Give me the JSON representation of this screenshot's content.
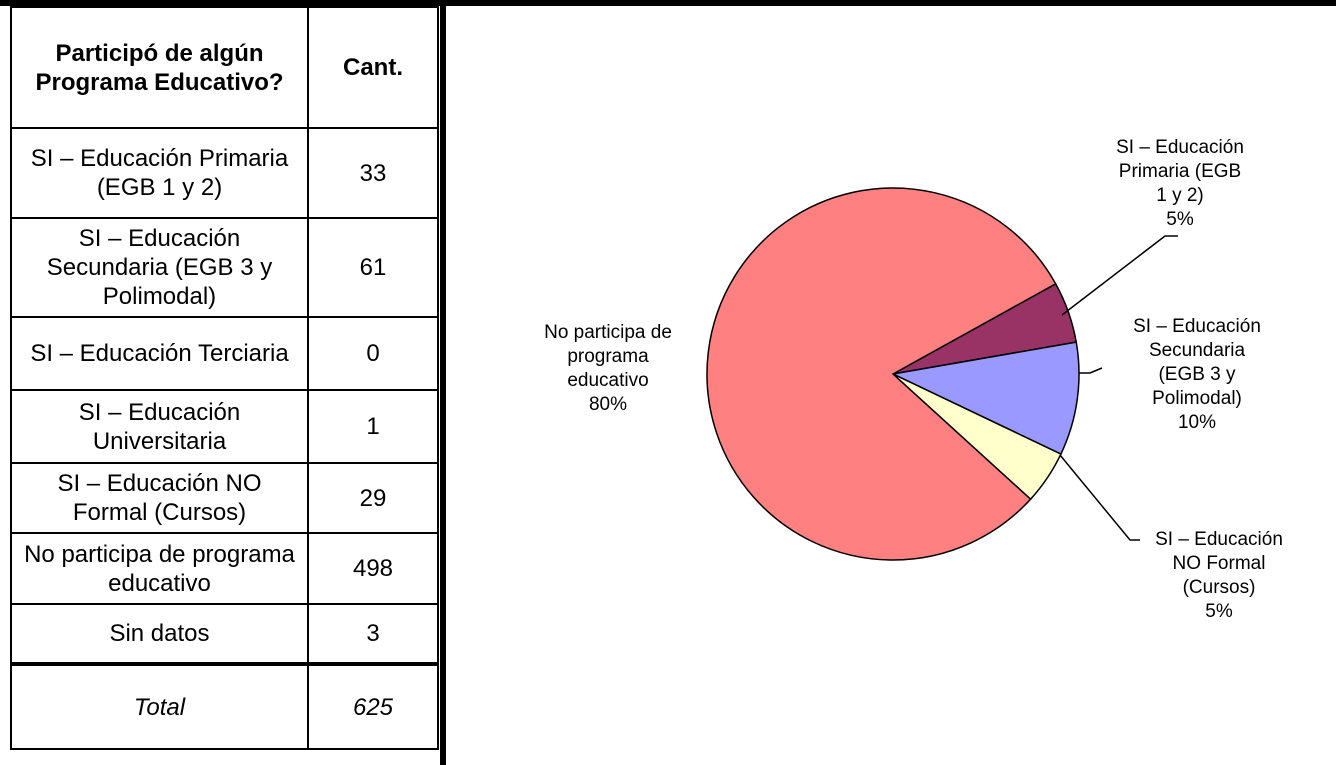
{
  "table": {
    "header": {
      "category": "Participó de algún Programa Educativo?",
      "count": "Cant."
    },
    "rows": [
      {
        "label": "SI – Educación Primaria (EGB 1 y 2)",
        "value": "33"
      },
      {
        "label": "SI – Educación Secundaria (EGB 3 y Polimodal)",
        "value": "61"
      },
      {
        "label": "SI – Educación Terciaria",
        "value": "0"
      },
      {
        "label": "SI – Educación Universitaria",
        "value": "1"
      },
      {
        "label": "SI – Educación NO Formal (Cursos)",
        "value": "29"
      },
      {
        "label": "No participa de programa educativo",
        "value": "498"
      },
      {
        "label": "Sin datos",
        "value": "3"
      }
    ],
    "total": {
      "label": "Total",
      "value": "625"
    }
  },
  "chart_data": {
    "type": "pie",
    "slices": [
      {
        "name": "SI – Educación Primaria (EGB 1 y 2)",
        "value": 33,
        "percent": "5%",
        "color": "#993366"
      },
      {
        "name": "SI – Educación Secundaria (EGB 3 y Polimodal)",
        "value": 61,
        "percent": "10%",
        "color": "#9999ff"
      },
      {
        "name": "SI – Educación NO Formal (Cursos)",
        "value": 29,
        "percent": "5%",
        "color": "#ffffcc"
      },
      {
        "name": "No participa de programa educativo",
        "value": 498,
        "percent": "80%",
        "color": "#ff8080"
      }
    ],
    "data_labels": [
      {
        "lines": [
          "SI – Educación",
          "Primaria (EGB",
          "1 y 2)"
        ],
        "percent": "5%"
      },
      {
        "lines": [
          "SI – Educación",
          "Secundaria",
          "(EGB 3 y",
          "Polimodal)"
        ],
        "percent": "10%"
      },
      {
        "lines": [
          "SI – Educación",
          "NO Formal",
          "(Cursos)"
        ],
        "percent": "5%"
      },
      {
        "lines": [
          "No participa de",
          "programa",
          "educativo"
        ],
        "percent": "80%"
      }
    ]
  }
}
